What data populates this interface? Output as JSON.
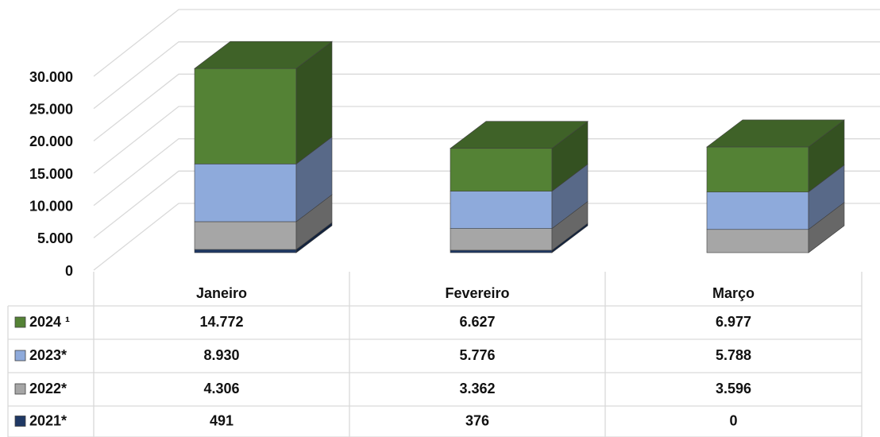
{
  "chart_data": {
    "type": "bar3d_stacked",
    "categories": [
      "Janeiro",
      "Fevereiro",
      "Março"
    ],
    "series": [
      {
        "name": "2024 ¹",
        "color": "#548235",
        "values": [
          14772,
          6627,
          6977
        ],
        "value_labels": [
          "14.772",
          "6.627",
          "6.977"
        ]
      },
      {
        "name": "2023*",
        "color": "#8eaadb",
        "values": [
          8930,
          5776,
          5788
        ],
        "value_labels": [
          "8.930",
          "5.776",
          "5.788"
        ]
      },
      {
        "name": "2022*",
        "color": "#a6a6a6",
        "values": [
          4306,
          3362,
          3596
        ],
        "value_labels": [
          "4.306",
          "3.362",
          "3.596"
        ]
      },
      {
        "name": "2021*",
        "color": "#1f3864",
        "values": [
          491,
          376,
          0
        ],
        "value_labels": [
          "491",
          "376",
          "0"
        ]
      }
    ],
    "ylim": [
      0,
      30000
    ],
    "yticks": [
      0,
      {
        "value": 5000,
        "label": "5.000"
      },
      {
        "value": 10000,
        "label": "10.000"
      },
      {
        "value": 15000,
        "label": "15.000"
      },
      {
        "value": 20000,
        "label": "20.000"
      },
      {
        "value": 25000,
        "label": "25.000"
      },
      {
        "value": 30000,
        "label": "30.000"
      }
    ],
    "grid": true
  }
}
